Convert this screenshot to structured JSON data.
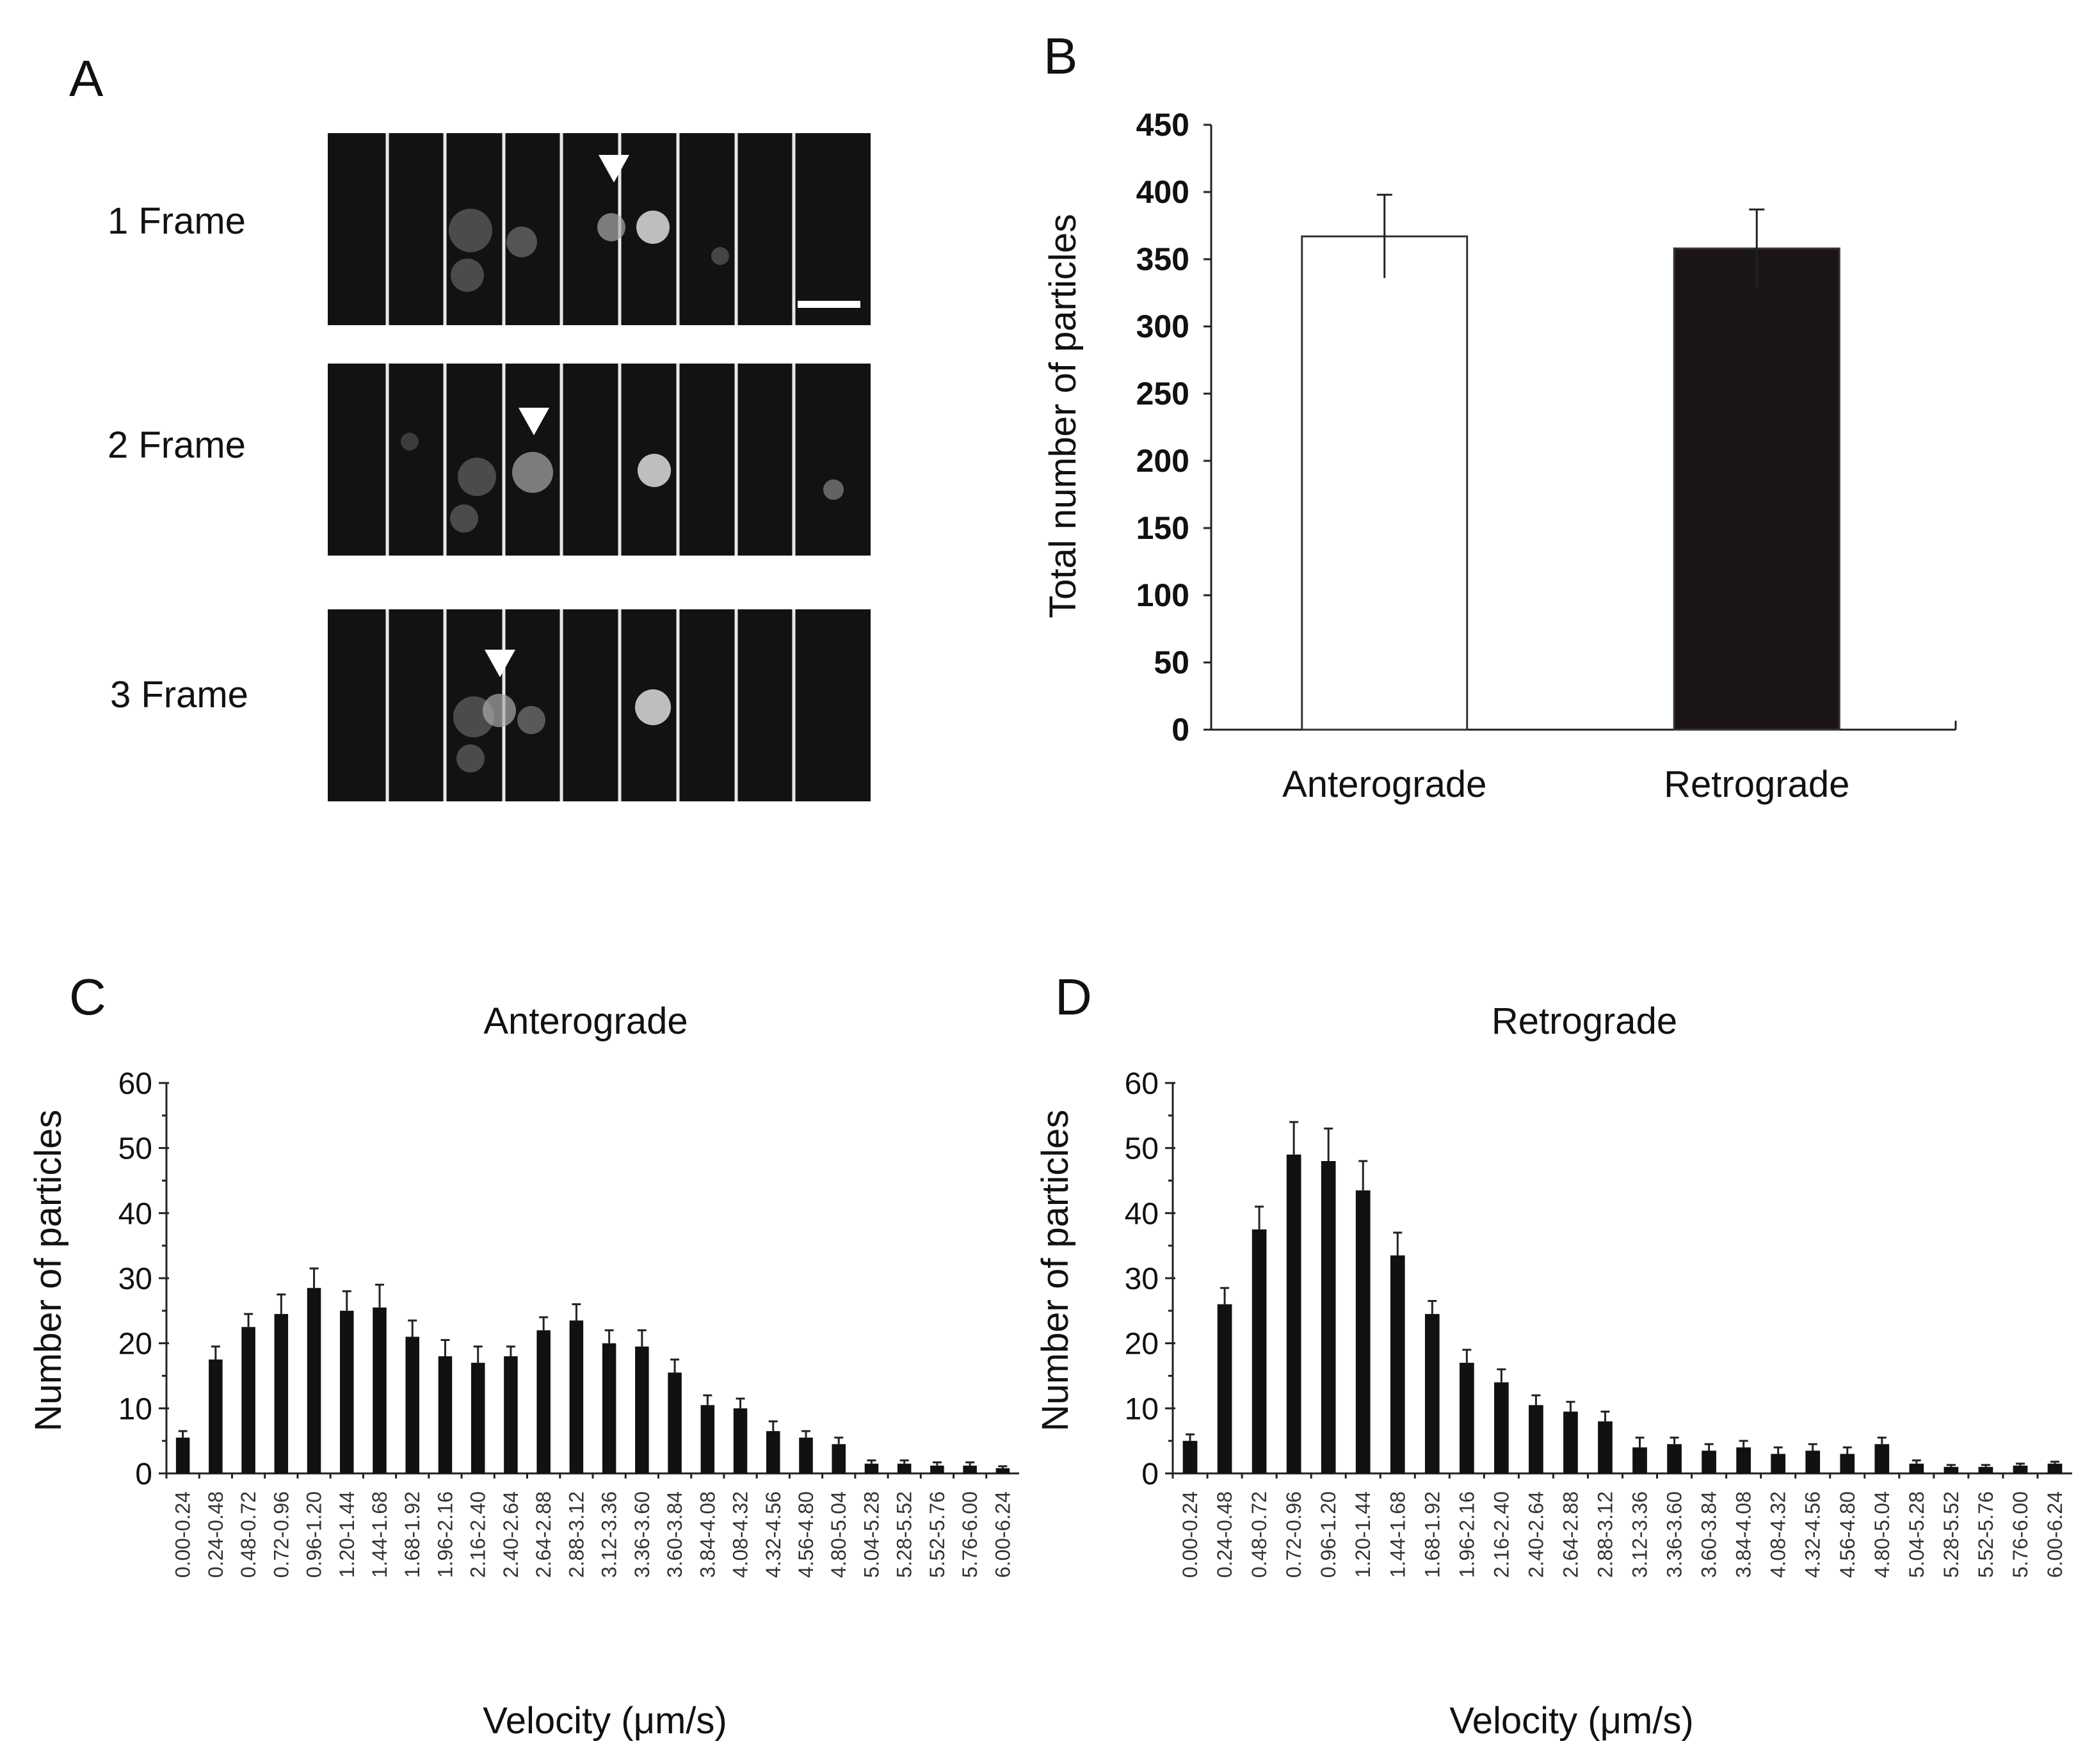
{
  "panel_a": {
    "letter": "A",
    "frames": [
      {
        "label": "1 Frame"
      },
      {
        "label": "2 Frame"
      },
      {
        "label": "3 Frame"
      }
    ],
    "arrowhead_icon": "down-triangle-marker",
    "scale_bar_icon": "scale-bar"
  },
  "chart_data": [
    {
      "id": "B",
      "letter": "B",
      "type": "bar",
      "title": "",
      "xlabel": "",
      "ylabel": "Total number of particles",
      "categories": [
        "Anterograde",
        "Retrograde"
      ],
      "values": [
        367,
        358
      ],
      "errors": [
        31,
        29
      ],
      "fills": [
        "#ffffff",
        "#1c1516"
      ],
      "ylim": [
        0,
        450
      ],
      "yticks": [
        0,
        50,
        100,
        150,
        200,
        250,
        300,
        350,
        400,
        450
      ]
    },
    {
      "id": "C",
      "letter": "C",
      "type": "bar",
      "title": "Anterograde",
      "xlabel": "Velocity (μm/s)",
      "ylabel": "Number of particles",
      "categories": [
        "0.00-0.24",
        "0.24-0.48",
        "0.48-0.72",
        "0.72-0.96",
        "0.96-1.20",
        "1.20-1.44",
        "1.44-1.68",
        "1.68-1.92",
        "1.96-2.16",
        "2.16-2.40",
        "2.40-2.64",
        "2.64-2.88",
        "2.88-3.12",
        "3.12-3.36",
        "3.36-3.60",
        "3.60-3.84",
        "3.84-4.08",
        "4.08-4.32",
        "4.32-4.56",
        "4.56-4.80",
        "4.80-5.04",
        "5.04-5.28",
        "5.28-5.52",
        "5.52-5.76",
        "5.76-6.00",
        "6.00-6.24"
      ],
      "values": [
        5.5,
        17.5,
        22.5,
        24.5,
        28.5,
        25,
        25.5,
        21,
        18,
        17,
        18,
        22,
        23.5,
        20,
        19.5,
        15.5,
        10.5,
        10,
        6.5,
        5.5,
        4.5,
        1.5,
        1.5,
        1.2,
        1.2,
        0.8
      ],
      "errors": [
        1,
        2,
        2,
        3,
        3,
        3,
        3.5,
        2.5,
        2.5,
        2.5,
        1.5,
        2,
        2.5,
        2,
        2.5,
        2,
        1.5,
        1.5,
        1.5,
        1,
        1,
        0.5,
        0.5,
        0.5,
        0.5,
        0.3
      ],
      "ylim": [
        0,
        60
      ],
      "yticks": [
        0,
        10,
        20,
        30,
        40,
        50,
        60
      ]
    },
    {
      "id": "D",
      "letter": "D",
      "type": "bar",
      "title": "Retrograde",
      "xlabel": "Velocity (μm/s)",
      "ylabel": "Number of particles",
      "categories": [
        "0.00-0.24",
        "0.24-0.48",
        "0.48-0.72",
        "0.72-0.96",
        "0.96-1.20",
        "1.20-1.44",
        "1.44-1.68",
        "1.68-1.92",
        "1.96-2.16",
        "2.16-2.40",
        "2.40-2.64",
        "2.64-2.88",
        "2.88-3.12",
        "3.12-3.36",
        "3.36-3.60",
        "3.60-3.84",
        "3.84-4.08",
        "4.08-4.32",
        "4.32-4.56",
        "4.56-4.80",
        "4.80-5.04",
        "5.04-5.28",
        "5.28-5.52",
        "5.52-5.76",
        "5.76-6.00",
        "6.00-6.24"
      ],
      "values": [
        5,
        26,
        37.5,
        49,
        48,
        43.5,
        33.5,
        24.5,
        17,
        14,
        10.5,
        9.5,
        8,
        4,
        4.5,
        3.5,
        4,
        3,
        3.5,
        3,
        4.5,
        1.5,
        1,
        1,
        1.2,
        1.5
      ],
      "errors": [
        1,
        2.5,
        3.5,
        5,
        5,
        4.5,
        3.5,
        2,
        2,
        2,
        1.5,
        1.5,
        1.5,
        1.5,
        1,
        1,
        1,
        1,
        1,
        1,
        1,
        0.5,
        0.3,
        0.3,
        0.3,
        0.3
      ],
      "ylim": [
        0,
        60
      ],
      "yticks": [
        0,
        10,
        20,
        30,
        40,
        50,
        60
      ]
    }
  ]
}
